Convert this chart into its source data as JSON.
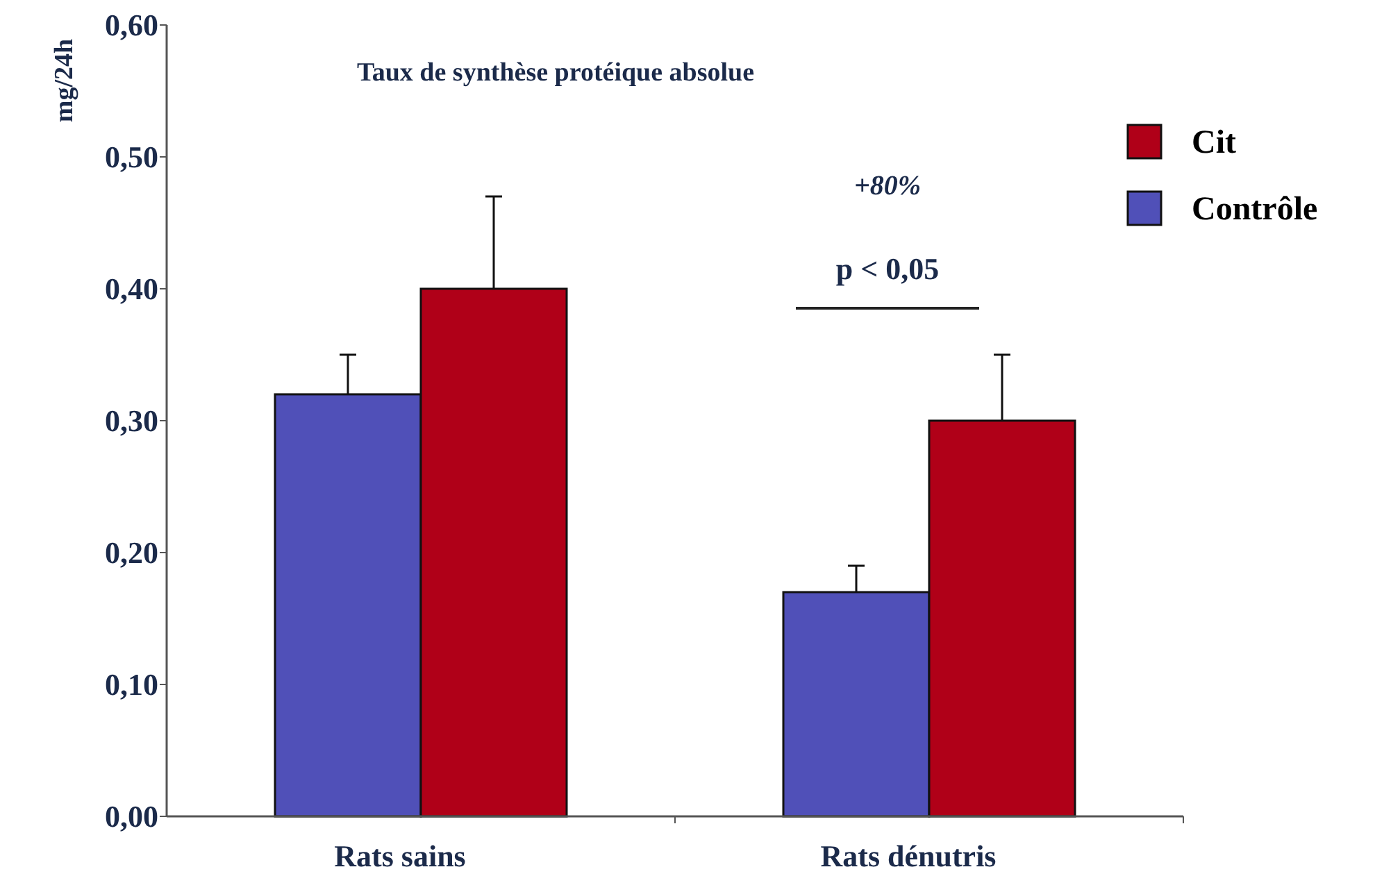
{
  "chart_data": {
    "type": "bar",
    "title": "Taux de synthèse protéique absolue",
    "ylabel": "mg/24h",
    "categories": [
      "Rats sains",
      "Rats dénutris"
    ],
    "series": [
      {
        "name": "Contrôle",
        "color": "#5050b8",
        "values": [
          0.32,
          0.17
        ],
        "errors": [
          0.03,
          0.02
        ]
      },
      {
        "name": "Cit",
        "color": "#b00018",
        "values": [
          0.4,
          0.3
        ],
        "errors": [
          0.07,
          0.05
        ]
      }
    ],
    "ylim": [
      0,
      0.6
    ],
    "yticks": [
      {
        "value": 0,
        "label": "0,00"
      },
      {
        "value": 0.1,
        "label": "0,10"
      },
      {
        "value": 0.2,
        "label": "0,20"
      },
      {
        "value": 0.3,
        "label": "0,30"
      },
      {
        "value": 0.4,
        "label": "0,40"
      },
      {
        "value": 0.5,
        "label": "0,50"
      },
      {
        "value": 0.6,
        "label": "0,60"
      }
    ],
    "annotations": [
      "+80%",
      "p < 0,05"
    ],
    "legend": "right",
    "grid": false
  }
}
